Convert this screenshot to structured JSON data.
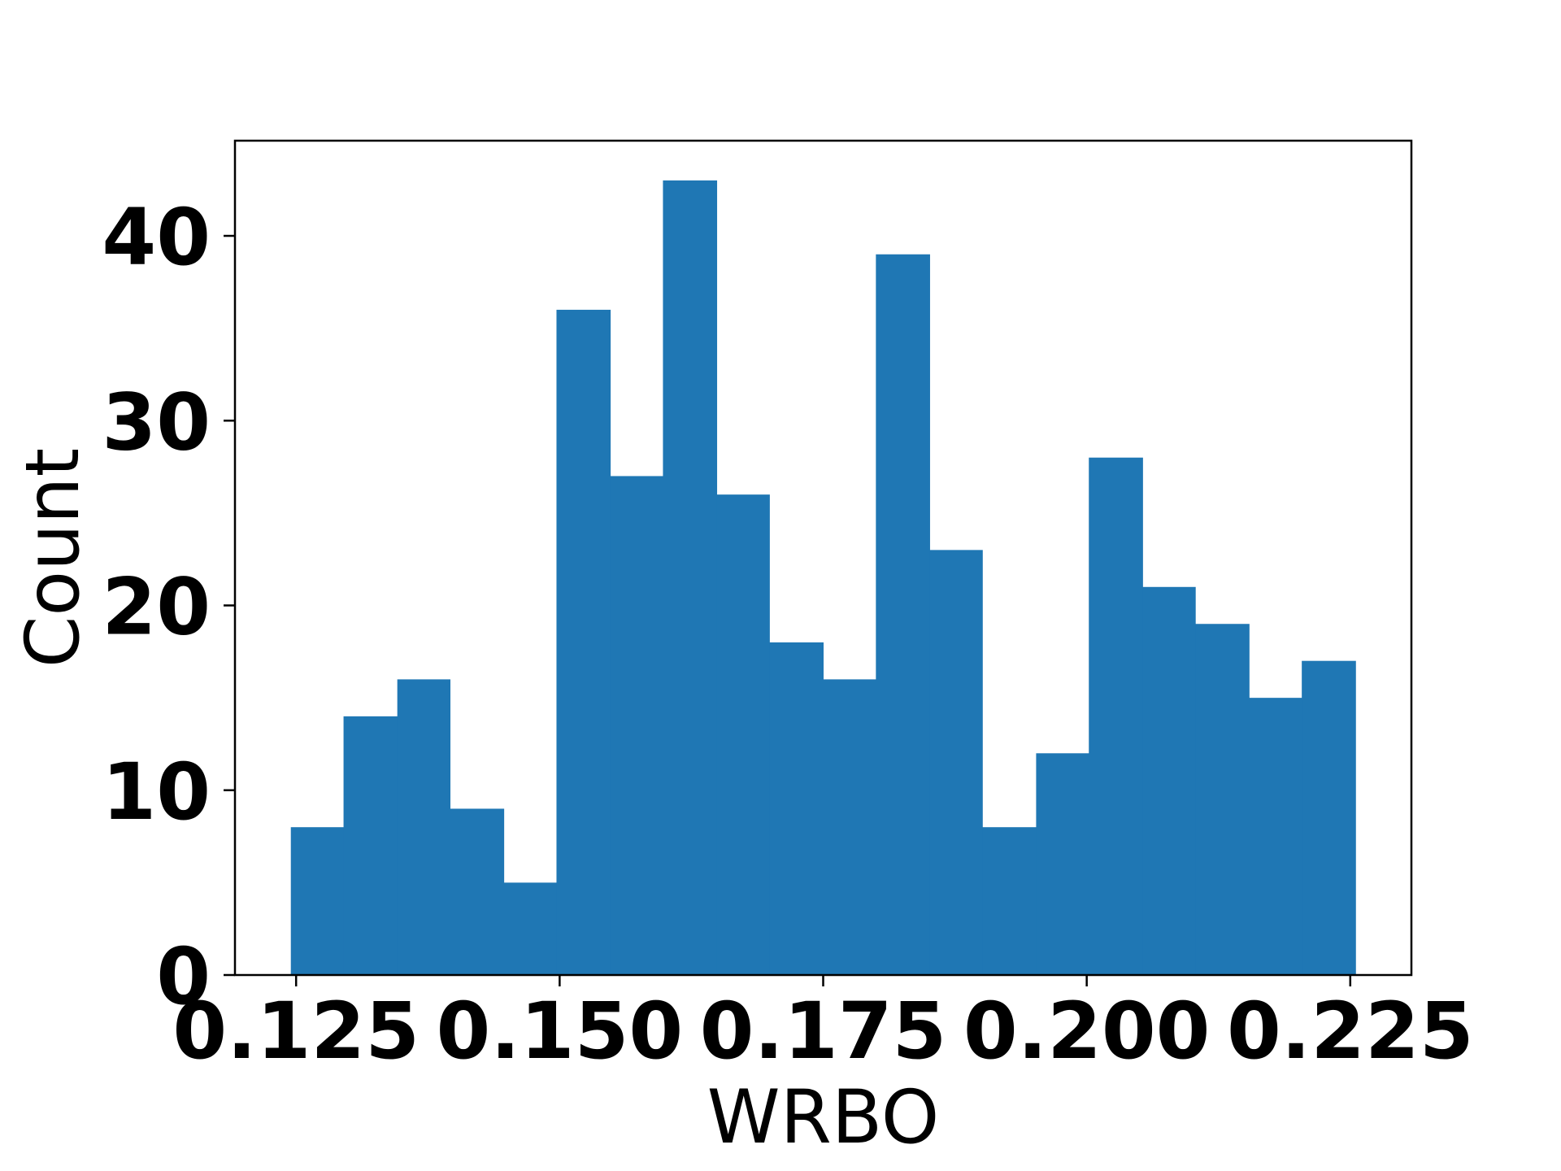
{
  "chart_data": {
    "type": "bar",
    "title": "",
    "xlabel": "WRBO",
    "ylabel": "Count",
    "bar_color": "#1f77b4",
    "bin_edges": [
      0.1245,
      0.1295,
      0.1346,
      0.1396,
      0.1447,
      0.1497,
      0.1548,
      0.1598,
      0.1649,
      0.1699,
      0.175,
      0.18,
      0.1851,
      0.1901,
      0.1952,
      0.2002,
      0.2053,
      0.2103,
      0.2154,
      0.2204,
      0.2255
    ],
    "values": [
      8,
      14,
      16,
      9,
      5,
      36,
      27,
      43,
      26,
      18,
      16,
      39,
      23,
      8,
      12,
      28,
      21,
      19,
      15,
      17
    ],
    "x_ticks": [
      0.125,
      0.15,
      0.175,
      0.2,
      0.225
    ],
    "x_tick_labels": [
      "0.125",
      "0.150",
      "0.175",
      "0.200",
      "0.225"
    ],
    "y_ticks": [
      0,
      10,
      20,
      30,
      40
    ],
    "y_tick_labels": [
      "0",
      "10",
      "20",
      "30",
      "40"
    ],
    "xlim": [
      0.1192,
      0.2308
    ],
    "ylim": [
      0,
      45.15
    ],
    "grid": false
  }
}
